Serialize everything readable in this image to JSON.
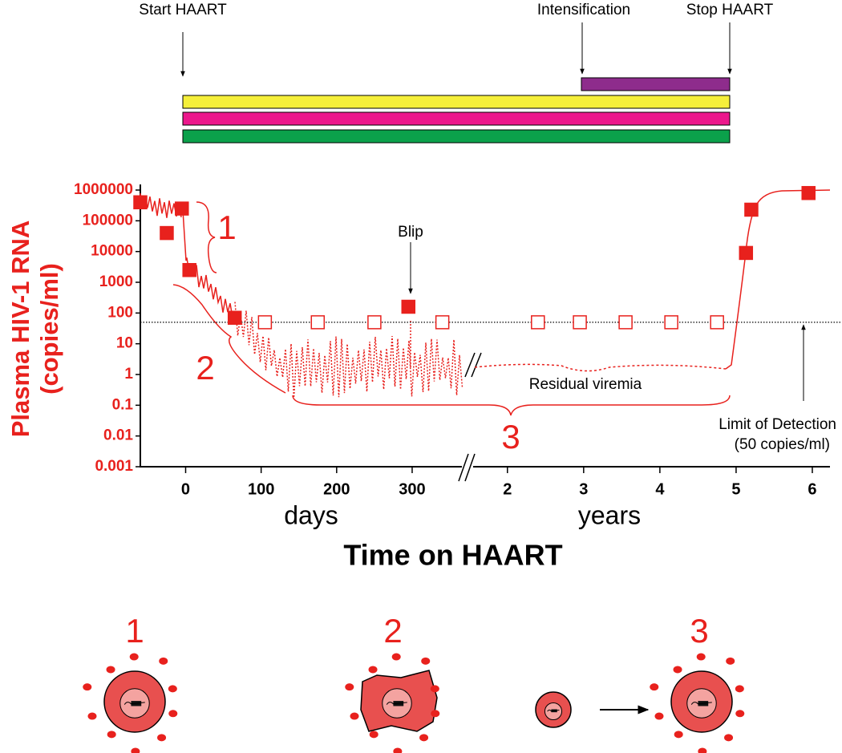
{
  "chart_data": {
    "type": "scatter",
    "y_label": [
      "Plasma HIV-1 RNA",
      "(copies/ml)"
    ],
    "x_label": "Time on HAART",
    "log_y": true,
    "ylim": [
      0.001,
      1000000
    ],
    "yticks": [
      0.001,
      0.01,
      0.1,
      1,
      10,
      100,
      1000,
      10000,
      100000,
      1000000
    ],
    "limit_of_detection": 50,
    "segments": [
      {
        "unit_label": "days",
        "xlim": [
          -60,
          368
        ],
        "xticks": [
          0,
          100,
          200,
          300
        ],
        "series": [
          {
            "marker": "filled",
            "color": "#e8211d",
            "x": [
              -60,
              -25,
              -5,
              5,
              65,
              295
            ],
            "values": [
              400000,
              40000,
              250000,
              2500,
              70,
              160
            ]
          },
          {
            "marker": "open",
            "color": "#e8211d",
            "x": [
              105,
              175,
              250,
              340
            ],
            "values": [
              50,
              50,
              50,
              50
            ]
          }
        ]
      },
      {
        "unit_label": "years",
        "xlim": [
          1.55,
          6.2
        ],
        "xticks": [
          2,
          3,
          4,
          5,
          6
        ],
        "series": [
          {
            "marker": "filled",
            "color": "#e8211d",
            "x": [
              5.13,
              5.2,
              5.95
            ],
            "values": [
              9000,
              230000,
              800000
            ]
          },
          {
            "marker": "open",
            "color": "#e8211d",
            "x": [
              2.4,
              2.95,
              3.55,
              4.15,
              4.75
            ],
            "values": [
              50,
              50,
              50,
              50,
              50
            ]
          }
        ]
      }
    ],
    "annotations": {
      "start": "Start HAART",
      "intensification": "Intensification",
      "stop": "Stop HAART",
      "blip": "Blip",
      "residual": "Residual viremia",
      "lod": [
        "Limit of Detection",
        "(50 copies/ml)"
      ],
      "phases": [
        "1",
        "2",
        "3"
      ]
    },
    "cell_labels": [
      "1",
      "2",
      "3"
    ]
  }
}
